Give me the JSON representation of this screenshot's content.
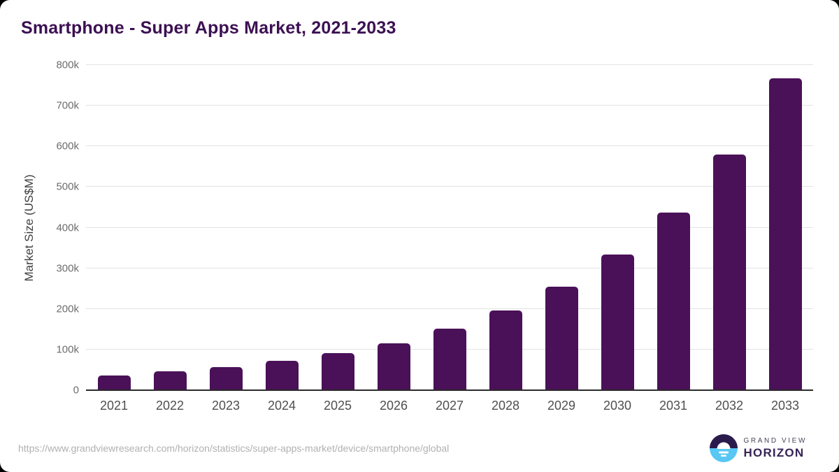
{
  "title": "Smartphone - Super Apps Market, 2021-2033",
  "chart_data": {
    "type": "bar",
    "title": "Smartphone - Super Apps Market, 2021-2033",
    "xlabel": "",
    "ylabel": "Market Size (US$M)",
    "categories": [
      "2021",
      "2022",
      "2023",
      "2024",
      "2025",
      "2026",
      "2027",
      "2028",
      "2029",
      "2030",
      "2031",
      "2032",
      "2033"
    ],
    "values": [
      36000,
      46000,
      57500,
      71500,
      92000,
      116000,
      151000,
      196000,
      255000,
      333000,
      437000,
      579000,
      768000
    ],
    "ylim": [
      0,
      800000
    ],
    "yticks": [
      {
        "value": 800000,
        "label": "800k"
      },
      {
        "value": 700000,
        "label": "700k"
      },
      {
        "value": 600000,
        "label": "600k"
      },
      {
        "value": 500000,
        "label": "500k"
      },
      {
        "value": 400000,
        "label": "400k"
      },
      {
        "value": 300000,
        "label": "300k"
      },
      {
        "value": 200000,
        "label": "200k"
      },
      {
        "value": 100000,
        "label": "100k"
      },
      {
        "value": 0,
        "label": "0"
      }
    ],
    "grid": true,
    "legend_position": "none",
    "bar_color": "#4a1158",
    "grid_color": "#e3e3e3",
    "axis_color": "#2b2b2b"
  },
  "colors": {
    "title": "#3c1053",
    "background": "#ffffff",
    "logo_purple": "#2b1b4d",
    "logo_blue": "#58c7f3"
  },
  "footer": {
    "source_url": "https://www.grandviewresearch.com/horizon/statistics/super-apps-market/device/smartphone/global",
    "logo": {
      "line1": "GRAND VIEW",
      "line2": "HORIZON"
    }
  }
}
